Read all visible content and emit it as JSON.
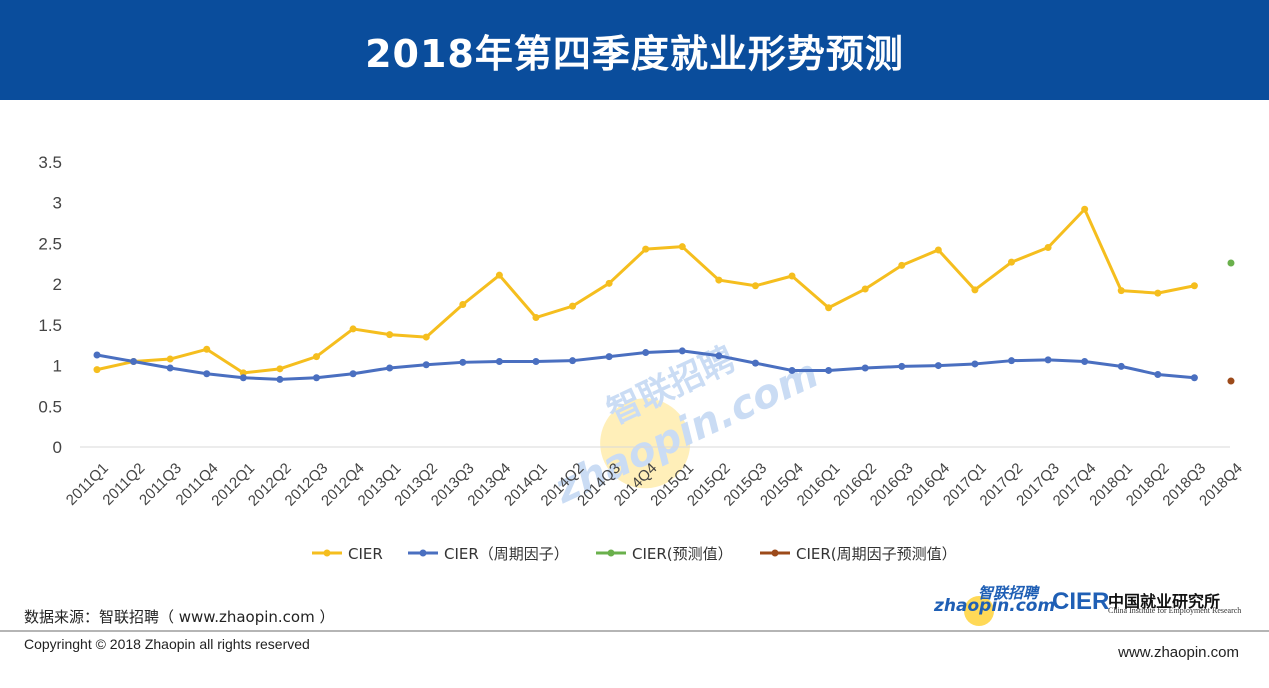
{
  "page": {
    "title": "2018年第四季度就业形势预测",
    "source": "数据来源：智联招聘（ www.zhaopin.com ）",
    "copyright": "Copyringht © 2018 Zhaopin all rights reserved",
    "website": "www.zhaopin.com"
  },
  "logos": {
    "zhaopin_cn": "智联招聘",
    "zhaopin_en": "zhaopin.com",
    "cier_en": "CIER",
    "cier_cn": "中国就业研究所",
    "cier_sub": "China Institute for Employment Research"
  },
  "watermark": {
    "cn": "智联招聘",
    "en": "zhaopin.com"
  },
  "chart_data": {
    "type": "line",
    "title": "",
    "xlabel": "",
    "ylabel": "",
    "ylim": [
      0,
      3.5
    ],
    "yticks": [
      0,
      0.5,
      1,
      1.5,
      2,
      2.5,
      3,
      3.5
    ],
    "ytick_labels": [
      "0",
      "0.5",
      "1",
      "1.5",
      "2",
      "2.5",
      "3",
      "3.5"
    ],
    "grid": "horizontal",
    "legend_position": "bottom",
    "categories": [
      "2011Q1",
      "2011Q2",
      "2011Q3",
      "2011Q4",
      "2012Q1",
      "2012Q2",
      "2012Q3",
      "2012Q4",
      "2013Q1",
      "2013Q2",
      "2013Q3",
      "2013Q4",
      "2014Q1",
      "2014Q2",
      "2014Q3",
      "2014Q4",
      "2015Q1",
      "2015Q2",
      "2015Q3",
      "2015Q4",
      "2016Q1",
      "2016Q2",
      "2016Q3",
      "2016Q4",
      "2017Q1",
      "2017Q2",
      "2017Q3",
      "2017Q4",
      "2018Q1",
      "2018Q2",
      "2018Q3",
      "2018Q4"
    ],
    "series": [
      {
        "name": "CIER",
        "color": "#f5be1e",
        "values": [
          0.95,
          1.05,
          1.08,
          1.2,
          0.91,
          0.96,
          1.11,
          1.45,
          1.38,
          1.35,
          1.75,
          2.11,
          1.59,
          1.73,
          2.01,
          2.43,
          2.46,
          2.05,
          1.98,
          2.1,
          1.71,
          1.94,
          2.23,
          2.42,
          1.93,
          2.27,
          2.45,
          2.92,
          1.92,
          1.89,
          1.98,
          null
        ]
      },
      {
        "name": "CIER（周期因子）",
        "color": "#4a6fc0",
        "values": [
          1.13,
          1.05,
          0.97,
          0.9,
          0.85,
          0.83,
          0.85,
          0.9,
          0.97,
          1.01,
          1.04,
          1.05,
          1.05,
          1.06,
          1.11,
          1.16,
          1.18,
          1.12,
          1.03,
          0.94,
          0.94,
          0.97,
          0.99,
          1.0,
          1.02,
          1.06,
          1.07,
          1.05,
          0.99,
          0.89,
          0.85,
          null
        ]
      },
      {
        "name": "CIER(预测值）",
        "color": "#6ab04c",
        "values": [
          null,
          null,
          null,
          null,
          null,
          null,
          null,
          null,
          null,
          null,
          null,
          null,
          null,
          null,
          null,
          null,
          null,
          null,
          null,
          null,
          null,
          null,
          null,
          null,
          null,
          null,
          null,
          null,
          null,
          null,
          null,
          2.26
        ]
      },
      {
        "name": "CIER(周期因子预测值）",
        "color": "#9c4a1a",
        "values": [
          null,
          null,
          null,
          null,
          null,
          null,
          null,
          null,
          null,
          null,
          null,
          null,
          null,
          null,
          null,
          null,
          null,
          null,
          null,
          null,
          null,
          null,
          null,
          null,
          null,
          null,
          null,
          null,
          null,
          null,
          null,
          0.81
        ]
      }
    ]
  }
}
